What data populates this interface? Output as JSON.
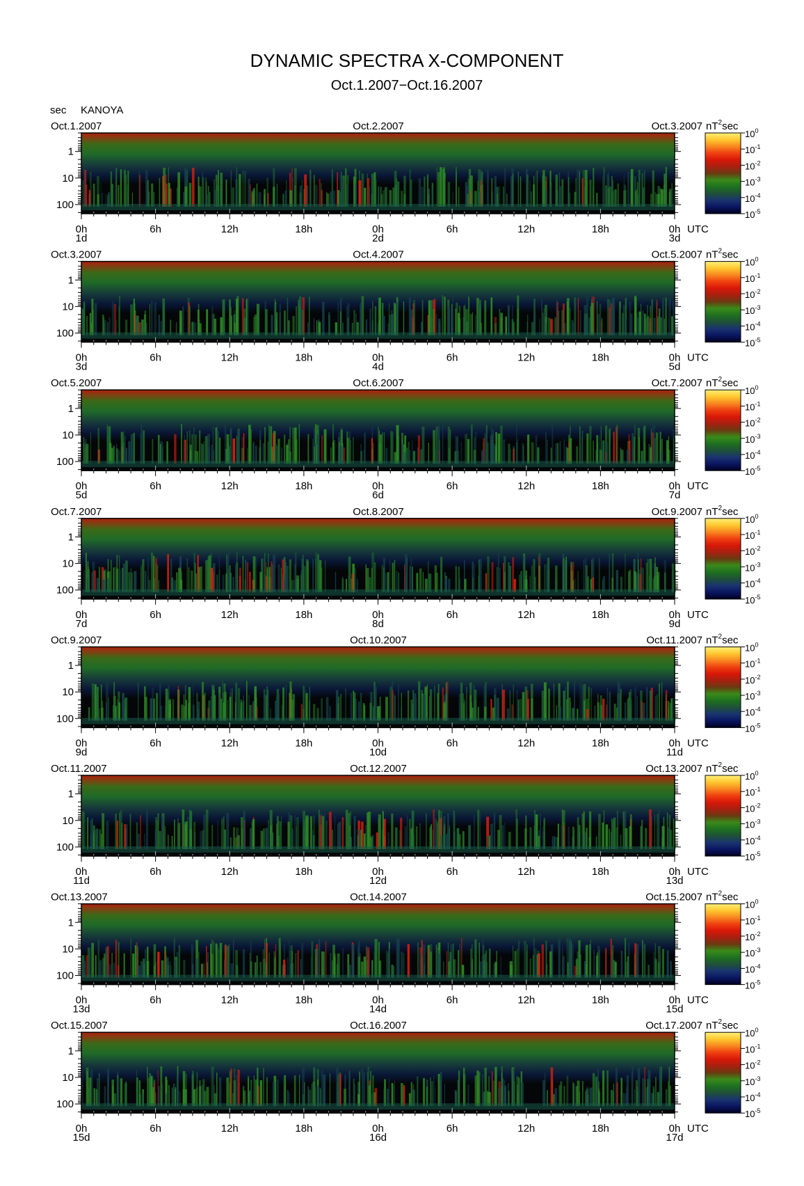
{
  "title": "DYNAMIC SPECTRA X-COMPONENT",
  "subtitle": "Oct.1.2007−Oct.16.2007",
  "y_unit": "sec",
  "station": "KANOYA",
  "colorbar_unit_base": "nT",
  "colorbar_unit_exp": "2",
  "colorbar_unit_tail": "sec",
  "utc_label": "UTC",
  "colors": {
    "colorbar": [
      "#000020",
      "#0a1560",
      "#1a3470",
      "#1f5038",
      "#1e7020",
      "#3a8a1a",
      "#6a3a10",
      "#a82010",
      "#d81808",
      "#f04010",
      "#f88820",
      "#ffc830",
      "#fff07a"
    ],
    "spectrum_background": "#040608",
    "band_top": "#a82010"
  },
  "chart_data": {
    "type": "heatmap",
    "xlabel": "UTC",
    "ylabel": "sec",
    "x_tick_labels": [
      "0h",
      "6h",
      "12h",
      "18h",
      "0h",
      "6h",
      "12h",
      "18h",
      "0h"
    ],
    "y_tick_labels": [
      "1",
      "10",
      "100"
    ],
    "y_scale": "log",
    "y_direction": "inverted",
    "colorbar": {
      "label": "nT²sec",
      "scale": "log",
      "range": [
        1e-05,
        1
      ],
      "tick_labels": [
        {
          "base": "10",
          "exp": "0"
        },
        {
          "base": "10",
          "exp": "-1"
        },
        {
          "base": "10",
          "exp": "-2"
        },
        {
          "base": "10",
          "exp": "-3"
        },
        {
          "base": "10",
          "exp": "-4"
        },
        {
          "base": "10",
          "exp": "-5"
        }
      ]
    },
    "panels": [
      {
        "date_left": "Oct.1.2007",
        "date_mid": "Oct.2.2007",
        "date_right": "Oct.3.2007",
        "day_left": "1d",
        "day_mid": "2d",
        "day_right": "3d"
      },
      {
        "date_left": "Oct.3.2007",
        "date_mid": "Oct.4.2007",
        "date_right": "Oct.5.2007",
        "day_left": "3d",
        "day_mid": "4d",
        "day_right": "5d"
      },
      {
        "date_left": "Oct.5.2007",
        "date_mid": "Oct.6.2007",
        "date_right": "Oct.7.2007",
        "day_left": "5d",
        "day_mid": "6d",
        "day_right": "7d"
      },
      {
        "date_left": "Oct.7.2007",
        "date_mid": "Oct.8.2007",
        "date_right": "Oct.9.2007",
        "day_left": "7d",
        "day_mid": "8d",
        "day_right": "9d"
      },
      {
        "date_left": "Oct.9.2007",
        "date_mid": "Oct.10.2007",
        "date_right": "Oct.11.2007",
        "day_left": "9d",
        "day_mid": "10d",
        "day_right": "11d"
      },
      {
        "date_left": "Oct.11.2007",
        "date_mid": "Oct.12.2007",
        "date_right": "Oct.13.2007",
        "day_left": "11d",
        "day_mid": "12d",
        "day_right": "13d"
      },
      {
        "date_left": "Oct.13.2007",
        "date_mid": "Oct.14.2007",
        "date_right": "Oct.15.2007",
        "day_left": "13d",
        "day_mid": "14d",
        "day_right": "15d"
      },
      {
        "date_left": "Oct.15.2007",
        "date_mid": "Oct.16.2007",
        "date_right": "Oct.17.2007",
        "day_left": "15d",
        "day_mid": "16d",
        "day_right": "17d"
      }
    ]
  }
}
